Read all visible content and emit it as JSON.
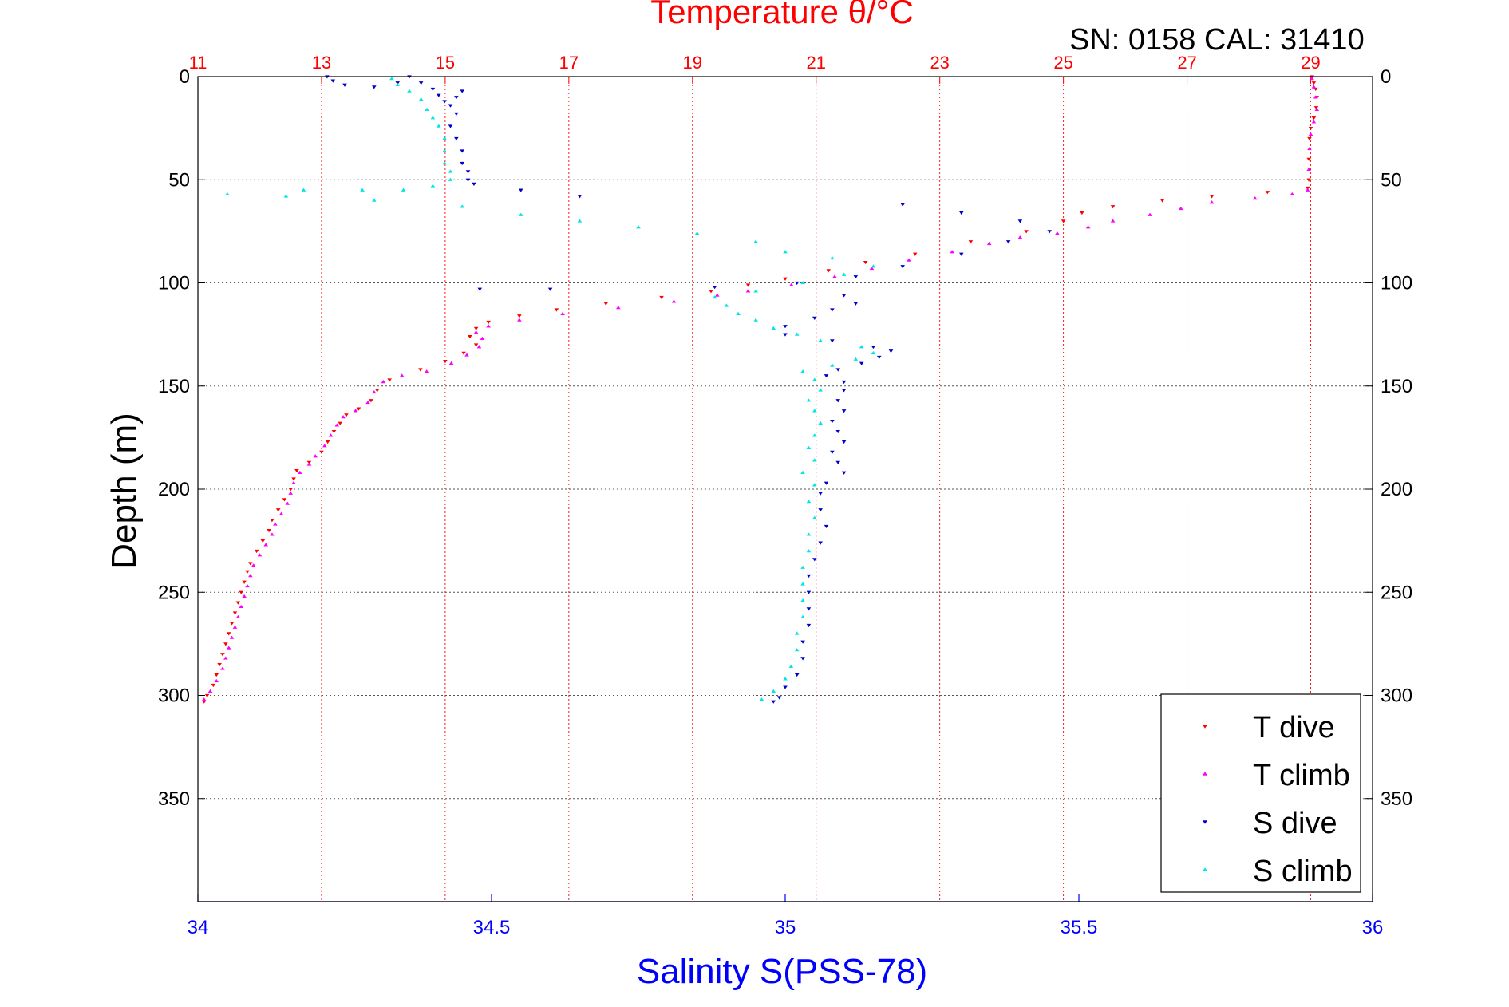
{
  "header": {
    "title": "Temperature θ/°C",
    "serial": "SN: 0158  CAL: 31410"
  },
  "colors": {
    "temperature_axis": "#ff0000",
    "salinity_axis": "#0000ff",
    "t_dive": "#ff0000",
    "t_climb": "#ff00ff",
    "s_dive": "#0000cc",
    "s_climb": "#00e5e5",
    "frame": "#000000"
  },
  "chart_data": {
    "type": "scatter",
    "title": "Temperature θ/°C",
    "xlabel": "Salinity S(PSS-78)",
    "ylabel": "Depth (m)",
    "y_axis": {
      "range": [
        0,
        400
      ],
      "reversed": true,
      "ticks": [
        0,
        50,
        100,
        150,
        200,
        250,
        300,
        350
      ],
      "tick_labels": [
        "0",
        "50",
        "100",
        "150",
        "200",
        "250",
        "300",
        "350"
      ]
    },
    "x_top_axis": {
      "label": "Temperature θ/°C",
      "range": [
        11,
        30
      ],
      "ticks": [
        11,
        13,
        15,
        17,
        19,
        21,
        23,
        25,
        27,
        29
      ],
      "tick_labels": [
        "11",
        "13",
        "15",
        "17",
        "19",
        "21",
        "23",
        "25",
        "27",
        "29"
      ],
      "grid": true
    },
    "x_bottom_axis": {
      "label": "Salinity S(PSS-78)",
      "range": [
        34,
        36
      ],
      "ticks": [
        34,
        34.5,
        35,
        35.5,
        36
      ],
      "tick_labels": [
        "34",
        "34.5",
        "35",
        "35.5",
        "36"
      ]
    },
    "grid": true,
    "legend_position": "bottom-right",
    "series": [
      {
        "name": "T dive",
        "axis": "temperature",
        "marker": "triangle-down",
        "points": [
          [
            29.02,
            0
          ],
          [
            29.05,
            3
          ],
          [
            29.08,
            6
          ],
          [
            29.1,
            10
          ],
          [
            29.09,
            15
          ],
          [
            29.05,
            20
          ],
          [
            29.0,
            25
          ],
          [
            28.98,
            30
          ],
          [
            28.97,
            40
          ],
          [
            28.97,
            50
          ],
          [
            28.95,
            54
          ],
          [
            28.3,
            56
          ],
          [
            27.4,
            58
          ],
          [
            26.6,
            60
          ],
          [
            25.8,
            63
          ],
          [
            25.3,
            66
          ],
          [
            25.0,
            70
          ],
          [
            24.4,
            75
          ],
          [
            23.5,
            80
          ],
          [
            22.6,
            86
          ],
          [
            21.8,
            90
          ],
          [
            21.2,
            94
          ],
          [
            20.5,
            98
          ],
          [
            19.9,
            101
          ],
          [
            19.3,
            104
          ],
          [
            18.5,
            107
          ],
          [
            17.6,
            110
          ],
          [
            16.8,
            113
          ],
          [
            16.2,
            116
          ],
          [
            15.7,
            119
          ],
          [
            15.5,
            122
          ],
          [
            15.4,
            126
          ],
          [
            15.5,
            130
          ],
          [
            15.3,
            134
          ],
          [
            15.0,
            138
          ],
          [
            14.6,
            142
          ],
          [
            14.1,
            147
          ],
          [
            13.9,
            152
          ],
          [
            13.8,
            157
          ],
          [
            13.6,
            161
          ],
          [
            13.4,
            164
          ],
          [
            13.3,
            168
          ],
          [
            13.2,
            172
          ],
          [
            13.1,
            177
          ],
          [
            13.0,
            182
          ],
          [
            12.8,
            187
          ],
          [
            12.6,
            191
          ],
          [
            12.55,
            195
          ],
          [
            12.5,
            200
          ],
          [
            12.4,
            205
          ],
          [
            12.3,
            210
          ],
          [
            12.2,
            215
          ],
          [
            12.15,
            220
          ],
          [
            12.05,
            225
          ],
          [
            11.95,
            230
          ],
          [
            11.85,
            236
          ],
          [
            11.8,
            240
          ],
          [
            11.75,
            245
          ],
          [
            11.7,
            250
          ],
          [
            11.65,
            255
          ],
          [
            11.6,
            260
          ],
          [
            11.55,
            265
          ],
          [
            11.5,
            270
          ],
          [
            11.45,
            275
          ],
          [
            11.4,
            280
          ],
          [
            11.35,
            285
          ],
          [
            11.3,
            290
          ],
          [
            11.25,
            295
          ],
          [
            11.15,
            300
          ],
          [
            11.1,
            303
          ]
        ]
      },
      {
        "name": "T climb",
        "axis": "temperature",
        "marker": "triangle-up",
        "points": [
          [
            11.1,
            302
          ],
          [
            11.2,
            298
          ],
          [
            11.3,
            293
          ],
          [
            11.4,
            287
          ],
          [
            11.45,
            282
          ],
          [
            11.5,
            277
          ],
          [
            11.55,
            272
          ],
          [
            11.6,
            267
          ],
          [
            11.65,
            262
          ],
          [
            11.7,
            257
          ],
          [
            11.75,
            252
          ],
          [
            11.8,
            247
          ],
          [
            11.85,
            242
          ],
          [
            11.9,
            237
          ],
          [
            12.0,
            232
          ],
          [
            12.1,
            227
          ],
          [
            12.2,
            222
          ],
          [
            12.25,
            217
          ],
          [
            12.35,
            212
          ],
          [
            12.45,
            207
          ],
          [
            12.5,
            202
          ],
          [
            12.55,
            197
          ],
          [
            12.65,
            192
          ],
          [
            12.8,
            188
          ],
          [
            12.9,
            184
          ],
          [
            13.05,
            179
          ],
          [
            13.15,
            174
          ],
          [
            13.25,
            169
          ],
          [
            13.35,
            165
          ],
          [
            13.55,
            162
          ],
          [
            13.75,
            158
          ],
          [
            13.85,
            153
          ],
          [
            14.0,
            148
          ],
          [
            14.3,
            145
          ],
          [
            14.7,
            143
          ],
          [
            15.1,
            139
          ],
          [
            15.35,
            135
          ],
          [
            15.55,
            131
          ],
          [
            15.6,
            127
          ],
          [
            15.5,
            124
          ],
          [
            15.7,
            121
          ],
          [
            16.2,
            118
          ],
          [
            16.9,
            115
          ],
          [
            17.8,
            112
          ],
          [
            18.7,
            109
          ],
          [
            19.4,
            106
          ],
          [
            19.9,
            104
          ],
          [
            20.6,
            101
          ],
          [
            21.3,
            97
          ],
          [
            21.9,
            93
          ],
          [
            22.5,
            89
          ],
          [
            23.2,
            85
          ],
          [
            23.8,
            81
          ],
          [
            24.3,
            78
          ],
          [
            24.9,
            76
          ],
          [
            25.4,
            73
          ],
          [
            25.8,
            70
          ],
          [
            26.4,
            67
          ],
          [
            26.9,
            64
          ],
          [
            27.4,
            61
          ],
          [
            28.1,
            59
          ],
          [
            28.7,
            57
          ],
          [
            28.95,
            55
          ],
          [
            28.97,
            45
          ],
          [
            28.98,
            35
          ],
          [
            29.0,
            28
          ],
          [
            29.05,
            22
          ],
          [
            29.1,
            16
          ],
          [
            29.08,
            10
          ],
          [
            29.05,
            5
          ],
          [
            29.02,
            1
          ]
        ]
      },
      {
        "name": "S dive",
        "axis": "salinity",
        "marker": "triangle-down",
        "points": [
          [
            34.22,
            0
          ],
          [
            34.23,
            2
          ],
          [
            34.25,
            4
          ],
          [
            34.3,
            5
          ],
          [
            34.34,
            3
          ],
          [
            34.36,
            0
          ],
          [
            34.38,
            3
          ],
          [
            34.4,
            6
          ],
          [
            34.41,
            9
          ],
          [
            34.42,
            12
          ],
          [
            34.43,
            14
          ],
          [
            34.44,
            10
          ],
          [
            34.45,
            7
          ],
          [
            34.44,
            18
          ],
          [
            34.43,
            24
          ],
          [
            34.44,
            30
          ],
          [
            34.45,
            36
          ],
          [
            34.45,
            42
          ],
          [
            34.46,
            46
          ],
          [
            34.46,
            50
          ],
          [
            34.47,
            52
          ],
          [
            34.55,
            55
          ],
          [
            34.65,
            58
          ],
          [
            35.2,
            62
          ],
          [
            35.3,
            66
          ],
          [
            35.4,
            70
          ],
          [
            35.45,
            75
          ],
          [
            35.38,
            80
          ],
          [
            35.3,
            86
          ],
          [
            35.2,
            92
          ],
          [
            35.12,
            97
          ],
          [
            35.02,
            100
          ],
          [
            34.88,
            102
          ],
          [
            34.6,
            103
          ],
          [
            34.48,
            103
          ],
          [
            35.1,
            106
          ],
          [
            35.12,
            110
          ],
          [
            35.08,
            113
          ],
          [
            35.05,
            117
          ],
          [
            35.0,
            121
          ],
          [
            35.0,
            125
          ],
          [
            35.08,
            128
          ],
          [
            35.15,
            131
          ],
          [
            35.18,
            133
          ],
          [
            35.16,
            136
          ],
          [
            35.13,
            139
          ],
          [
            35.09,
            142
          ],
          [
            35.07,
            145
          ],
          [
            35.1,
            148
          ],
          [
            35.1,
            152
          ],
          [
            35.09,
            157
          ],
          [
            35.1,
            162
          ],
          [
            35.08,
            167
          ],
          [
            35.09,
            172
          ],
          [
            35.1,
            177
          ],
          [
            35.08,
            182
          ],
          [
            35.09,
            187
          ],
          [
            35.1,
            192
          ],
          [
            35.07,
            197
          ],
          [
            35.06,
            202
          ],
          [
            35.06,
            210
          ],
          [
            35.07,
            218
          ],
          [
            35.06,
            226
          ],
          [
            35.05,
            234
          ],
          [
            35.04,
            242
          ],
          [
            35.04,
            250
          ],
          [
            35.04,
            258
          ],
          [
            35.04,
            266
          ],
          [
            35.03,
            274
          ],
          [
            35.03,
            282
          ],
          [
            35.02,
            290
          ],
          [
            35.0,
            296
          ],
          [
            34.99,
            301
          ],
          [
            34.98,
            303
          ]
        ]
      },
      {
        "name": "S climb",
        "axis": "salinity",
        "marker": "triangle-up",
        "points": [
          [
            34.96,
            302
          ],
          [
            34.98,
            298
          ],
          [
            35.0,
            292
          ],
          [
            35.01,
            286
          ],
          [
            35.02,
            278
          ],
          [
            35.02,
            270
          ],
          [
            35.03,
            262
          ],
          [
            35.03,
            254
          ],
          [
            35.03,
            246
          ],
          [
            35.03,
            238
          ],
          [
            35.04,
            230
          ],
          [
            35.04,
            222
          ],
          [
            35.05,
            214
          ],
          [
            35.04,
            206
          ],
          [
            35.05,
            198
          ],
          [
            35.03,
            192
          ],
          [
            35.05,
            186
          ],
          [
            35.04,
            180
          ],
          [
            35.05,
            174
          ],
          [
            35.06,
            168
          ],
          [
            35.05,
            162
          ],
          [
            35.04,
            157
          ],
          [
            35.06,
            152
          ],
          [
            35.05,
            147
          ],
          [
            35.03,
            143
          ],
          [
            35.08,
            140
          ],
          [
            35.12,
            137
          ],
          [
            35.15,
            134
          ],
          [
            35.13,
            131
          ],
          [
            35.06,
            128
          ],
          [
            35.02,
            125
          ],
          [
            34.98,
            122
          ],
          [
            34.95,
            118
          ],
          [
            34.92,
            115
          ],
          [
            34.9,
            111
          ],
          [
            34.88,
            107
          ],
          [
            34.95,
            104
          ],
          [
            35.03,
            100
          ],
          [
            35.1,
            96
          ],
          [
            35.15,
            92
          ],
          [
            35.08,
            88
          ],
          [
            35.0,
            85
          ],
          [
            34.95,
            80
          ],
          [
            34.85,
            76
          ],
          [
            34.75,
            73
          ],
          [
            34.65,
            70
          ],
          [
            34.55,
            67
          ],
          [
            34.45,
            63
          ],
          [
            34.3,
            60
          ],
          [
            34.15,
            58
          ],
          [
            34.05,
            57
          ],
          [
            34.18,
            55
          ],
          [
            34.28,
            55
          ],
          [
            34.35,
            55
          ],
          [
            34.4,
            53
          ],
          [
            34.43,
            50
          ],
          [
            34.43,
            46
          ],
          [
            34.42,
            42
          ],
          [
            34.42,
            36
          ],
          [
            34.42,
            30
          ],
          [
            34.41,
            24
          ],
          [
            34.4,
            20
          ],
          [
            34.39,
            16
          ],
          [
            34.38,
            11
          ],
          [
            34.36,
            7
          ],
          [
            34.34,
            4
          ],
          [
            34.33,
            1
          ]
        ]
      }
    ],
    "legend": [
      {
        "label": "T dive",
        "series": "T dive"
      },
      {
        "label": "T climb",
        "series": "T climb"
      },
      {
        "label": "S dive",
        "series": "S dive"
      },
      {
        "label": "S climb",
        "series": "S climb"
      }
    ]
  }
}
